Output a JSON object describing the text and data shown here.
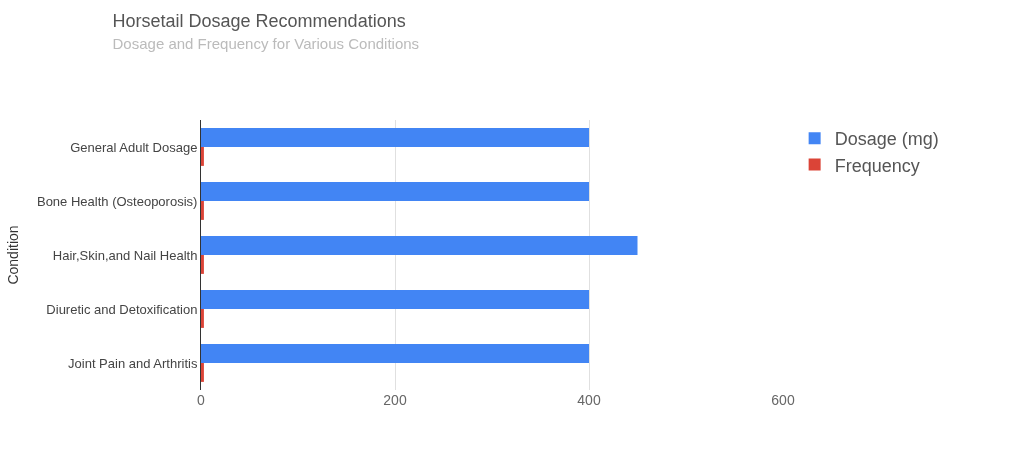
{
  "chart_data": {
    "type": "bar",
    "orientation": "horizontal",
    "title": "Horsetail Dosage Recommendations",
    "subtitle": "Dosage and Frequency for Various Conditions",
    "ylabel": "Condition",
    "categories": [
      "General Adult Dosage",
      "Bone Health (Osteoporosis)",
      "Hair,Skin,and Nail Health",
      "Diuretic and Detoxification",
      "Joint Pain and Arthritis"
    ],
    "series": [
      {
        "name": "Dosage (mg)",
        "color": "#4285f4",
        "values": [
          400,
          400,
          450,
          400,
          400
        ]
      },
      {
        "name": "Frequency",
        "color": "#db4437",
        "values": [
          3,
          3,
          3,
          3,
          3
        ]
      }
    ],
    "xlim": [
      0,
      600
    ],
    "xticks": [
      0,
      200,
      400,
      600
    ],
    "grid": "x",
    "legend": "top right"
  }
}
